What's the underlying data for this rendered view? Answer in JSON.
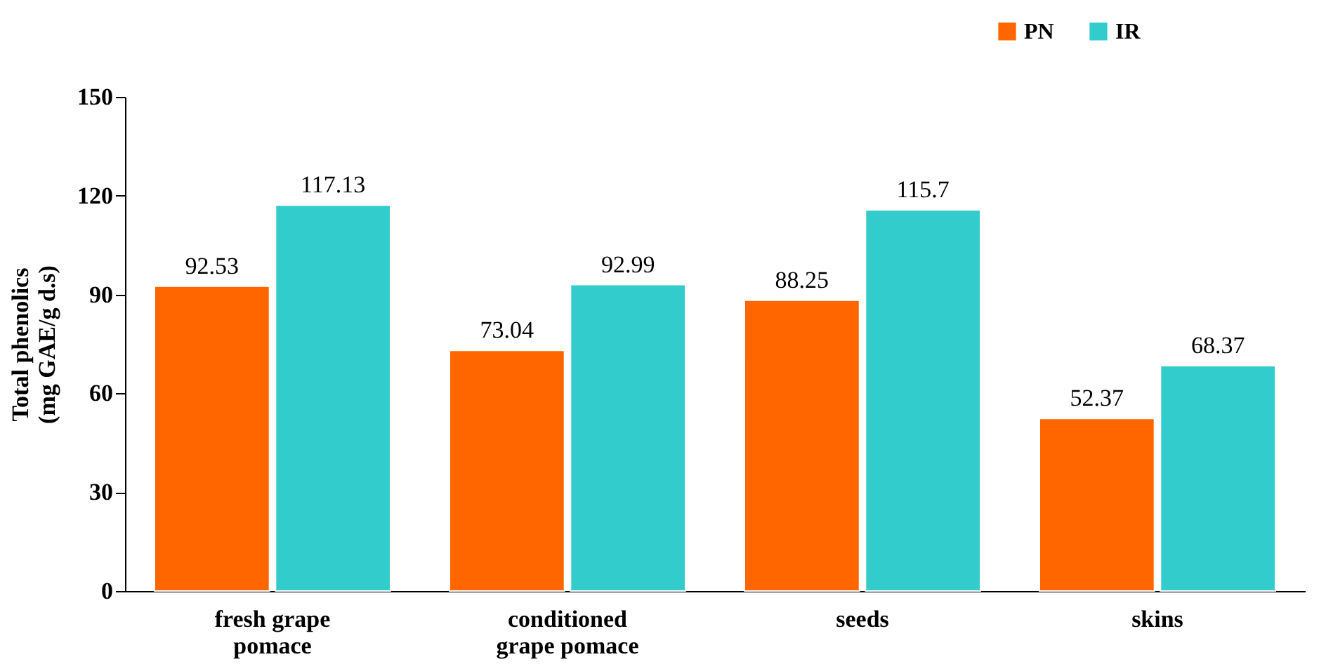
{
  "chart_data": {
    "type": "bar",
    "ylabel": "Total phenolics\n(mg GAE/g d.s)",
    "categories": [
      "fresh grape\npomace",
      "conditioned\ngrape pomace",
      "seeds",
      "skins"
    ],
    "series": [
      {
        "name": "PN",
        "color": "#ff6600",
        "values": [
          92.53,
          73.04,
          88.25,
          52.37
        ]
      },
      {
        "name": "IR",
        "color": "#33cccc",
        "values": [
          117.13,
          92.99,
          115.7,
          68.37
        ]
      }
    ],
    "ylim": [
      0,
      150
    ],
    "yticks": [
      0,
      30,
      60,
      90,
      120,
      150
    ],
    "grid": false,
    "legend": "top right",
    "data_labels": true
  }
}
